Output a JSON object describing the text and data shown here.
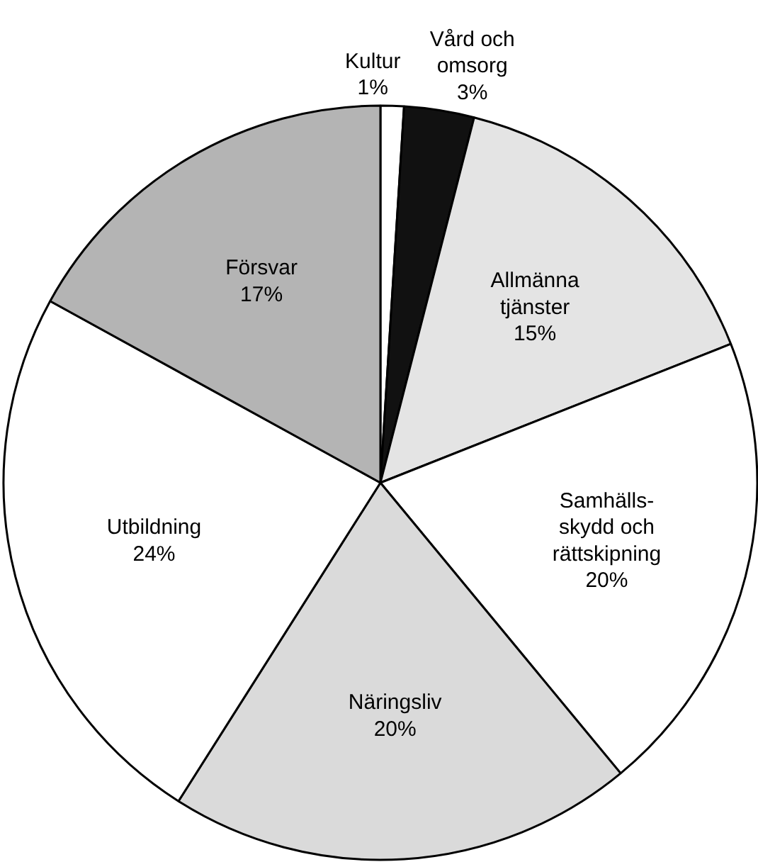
{
  "chart_data": {
    "type": "pie",
    "categories": [
      "Kultur",
      "Vård och\nomsorg",
      "Allmänna\ntjänster",
      "Samhälls-\nskydd och\nrättskipning",
      "Näringsliv",
      "Utbildning",
      "Försvar"
    ],
    "values": [
      1,
      3,
      15,
      20,
      20,
      24,
      17
    ],
    "value_labels": [
      "1%",
      "3%",
      "15%",
      "20%",
      "20%",
      "24%",
      "17%"
    ],
    "colors": [
      "#ffffff",
      "#111111",
      "#e4e4e4",
      "#ffffff",
      "#dadada",
      "#ffffff",
      "#b4b4b4"
    ]
  }
}
